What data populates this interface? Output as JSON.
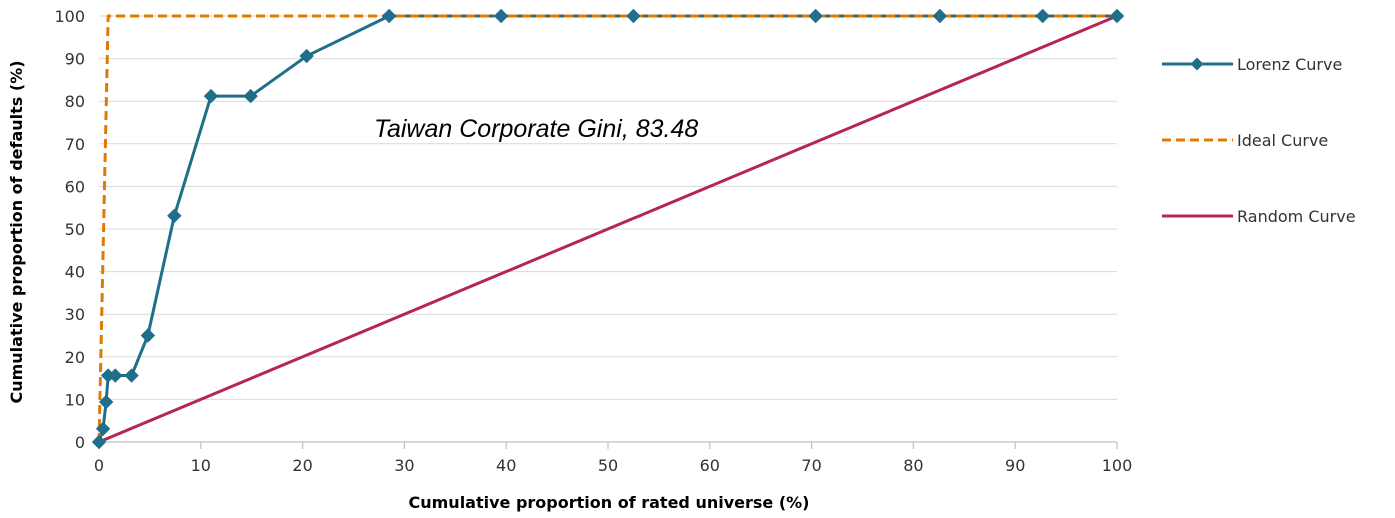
{
  "chart_data": {
    "type": "line",
    "title": "",
    "xlabel": "Cumulative proportion of rated universe (%)",
    "ylabel": "Cumulative proportion of defaults (%)",
    "xlim": [
      0,
      100
    ],
    "ylim": [
      0,
      100
    ],
    "x_ticks": [
      "0",
      "10",
      "20",
      "30",
      "40",
      "50",
      "60",
      "70",
      "80",
      "90",
      "100"
    ],
    "y_ticks": [
      "0",
      "10",
      "20",
      "30",
      "40",
      "50",
      "60",
      "70",
      "80",
      "90",
      "100"
    ],
    "grid": "horizontal",
    "legend_position": "right",
    "annotation": "Taiwan Corporate Gini, 83.48",
    "series": [
      {
        "name": "Lorenz Curve",
        "color": "#1f6f8b",
        "style": "solid-with-diamond-markers",
        "points": [
          [
            0,
            0
          ],
          [
            0.4,
            3.1
          ],
          [
            0.7,
            9.4
          ],
          [
            0.9,
            15.6
          ],
          [
            1.6,
            15.6
          ],
          [
            3.2,
            15.6
          ],
          [
            4.8,
            25.0
          ],
          [
            7.4,
            53.1
          ],
          [
            11.0,
            81.2
          ],
          [
            14.9,
            81.2
          ],
          [
            20.4,
            90.6
          ],
          [
            28.5,
            100
          ],
          [
            39.5,
            100
          ],
          [
            52.5,
            100
          ],
          [
            70.4,
            100
          ],
          [
            82.6,
            100
          ],
          [
            92.7,
            100
          ],
          [
            100,
            100
          ]
        ]
      },
      {
        "name": "Ideal Curve",
        "color": "#e07b00",
        "style": "dashed",
        "points": [
          [
            0,
            0
          ],
          [
            0.9,
            100
          ],
          [
            100,
            100
          ]
        ]
      },
      {
        "name": "Random Curve",
        "color": "#b5245a",
        "style": "solid",
        "points": [
          [
            0,
            0
          ],
          [
            100,
            100
          ]
        ]
      }
    ]
  }
}
